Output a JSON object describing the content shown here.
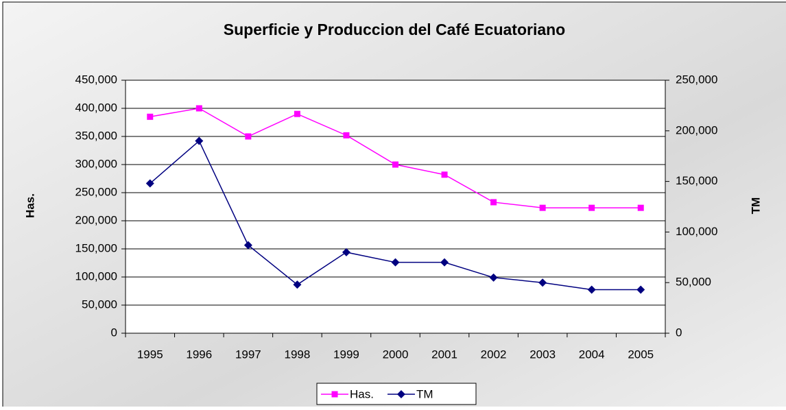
{
  "chart_data": {
    "type": "line",
    "title": "Superficie y Produccion del Café Ecuatoriano",
    "y_label": "Has.",
    "y2_label": "TM",
    "categories": [
      "1995",
      "1996",
      "1997",
      "1998",
      "1999",
      "2000",
      "2001",
      "2002",
      "2003",
      "2004",
      "2005"
    ],
    "series": [
      {
        "name": "Has.",
        "color": "#ff00ff",
        "marker": "square",
        "values": [
          385000,
          400000,
          350000,
          390000,
          352000,
          300000,
          282000,
          233000,
          223000,
          223000,
          223000
        ]
      },
      {
        "name": "TM",
        "color": "#000080",
        "marker": "diamond",
        "axis": "y2",
        "values": [
          148000,
          190000,
          87000,
          48000,
          80000,
          70000,
          70000,
          55000,
          50000,
          43000,
          43000
        ]
      }
    ],
    "ylim": [
      0,
      450000
    ],
    "yticks": [
      0,
      {
        "value": 50000,
        "label": "50,000"
      },
      {
        "value": 100000,
        "label": "100,000"
      },
      {
        "value": 150000,
        "label": "150,000"
      },
      {
        "value": 200000,
        "label": "200,000"
      },
      {
        "value": 250000,
        "label": "250,000"
      },
      {
        "value": 300000,
        "label": "300,000"
      },
      {
        "value": 350000,
        "label": "350,000"
      },
      {
        "value": 400000,
        "label": "400,000"
      },
      {
        "value": 450000,
        "label": "450,000"
      }
    ],
    "y2lim": [
      0,
      250000
    ],
    "y2ticks": [
      0,
      {
        "value": 50000,
        "label": "50,000"
      },
      {
        "value": 100000,
        "label": "100,000"
      },
      {
        "value": 150000,
        "label": "150,000"
      },
      {
        "value": 200000,
        "label": "200,000"
      },
      {
        "value": 250000,
        "label": "250,000"
      }
    ],
    "grid": true,
    "legend": "bottom"
  }
}
